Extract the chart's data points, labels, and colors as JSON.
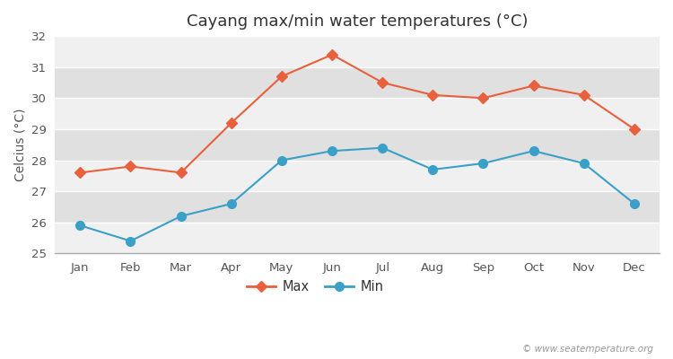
{
  "title": "Cayang max/min water temperatures (°C)",
  "ylabel": "Celcius (°C)",
  "months": [
    "Jan",
    "Feb",
    "Mar",
    "Apr",
    "May",
    "Jun",
    "Jul",
    "Aug",
    "Sep",
    "Oct",
    "Nov",
    "Dec"
  ],
  "max_temps": [
    27.6,
    27.8,
    27.6,
    29.2,
    30.7,
    31.4,
    30.5,
    30.1,
    30.0,
    30.4,
    30.1,
    29.0
  ],
  "min_temps": [
    25.9,
    25.4,
    26.2,
    26.6,
    28.0,
    28.3,
    28.4,
    27.7,
    27.9,
    28.3,
    27.9,
    26.6
  ],
  "max_color": "#e8603c",
  "min_color": "#3aa0c8",
  "fig_bg_color": "#ffffff",
  "band_colors": [
    "#f0f0f0",
    "#e0e0e0"
  ],
  "ylim": [
    25,
    32
  ],
  "yticks": [
    25,
    26,
    27,
    28,
    29,
    30,
    31,
    32
  ],
  "title_fontsize": 13,
  "axis_label_fontsize": 10,
  "tick_fontsize": 9.5,
  "legend_labels": [
    "Max",
    "Min"
  ],
  "watermark": "© www.seatemperature.org",
  "max_marker": "D",
  "min_marker": "o",
  "line_width": 1.5,
  "max_marker_size": 6,
  "min_marker_size": 7
}
